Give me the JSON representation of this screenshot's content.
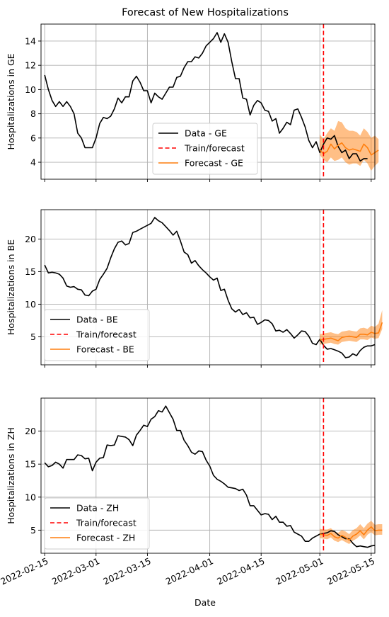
{
  "chart_data": {
    "type": "line",
    "title": "Forecast of New Hospitalizations",
    "xlabel": "Date",
    "x_start": "2022-02-15",
    "xlim": [
      "2022-02-14",
      "2022-05-16"
    ],
    "x_ticks": [
      "2022-02-15",
      "2022-03-01",
      "2022-03-15",
      "2022-04-01",
      "2022-04-15",
      "2022-05-01",
      "2022-05-15"
    ],
    "train_forecast_split": "2022-05-02",
    "grid": true,
    "colors": {
      "data": "#000000",
      "split": "#ff0000",
      "forecast": "#ff7f0e",
      "band": "#ff7f0e"
    },
    "panels": [
      {
        "region": "GE",
        "ylabel": "Hospitalizations in GE",
        "ylim": [
          2.6,
          15.4
        ],
        "yticks": [
          4,
          6,
          8,
          10,
          12,
          14
        ],
        "legend_position": "lower-center",
        "legend": [
          "Data - GE",
          "Train/forecast",
          "Forecast - GE"
        ],
        "data_values": [
          11.2,
          10.0,
          9.1,
          8.6,
          9.0,
          8.6,
          9.0,
          8.6,
          8.0,
          6.4,
          6.0,
          5.2,
          5.2,
          5.2,
          6.0,
          7.2,
          7.7,
          7.6,
          7.8,
          8.4,
          9.3,
          8.9,
          9.4,
          9.4,
          10.7,
          11.1,
          10.6,
          9.9,
          9.9,
          8.9,
          9.7,
          9.4,
          9.2,
          9.7,
          10.2,
          10.2,
          11.0,
          11.1,
          11.8,
          12.3,
          12.3,
          12.7,
          12.6,
          13.0,
          13.6,
          13.9,
          14.2,
          14.7,
          13.9,
          14.6,
          13.9,
          12.3,
          10.9,
          10.9,
          9.3,
          9.2,
          7.9,
          8.7,
          9.1,
          8.9,
          8.3,
          8.2,
          7.4,
          7.6,
          6.4,
          6.8,
          7.3,
          7.1,
          8.3,
          8.4,
          7.7,
          6.9,
          5.8,
          5.2,
          5.7,
          4.8,
          5.5,
          6.0,
          5.9,
          6.2,
          5.3,
          4.8,
          5.0,
          4.3,
          4.7,
          4.7,
          4.1,
          4.3,
          4.3
        ],
        "forecast_start": "2022-05-01",
        "forecast_values": [
          5.0,
          4.7,
          4.9,
          5.5,
          5.1,
          5.4,
          5.6,
          5.2,
          5.0,
          5.1,
          5.0,
          4.9,
          5.5,
          5.2,
          4.6,
          4.8,
          5.0
        ],
        "forecast_lower": [
          4.6,
          4.2,
          4.0,
          4.4,
          4.1,
          4.2,
          4.4,
          4.0,
          3.8,
          3.9,
          3.9,
          3.7,
          4.2,
          3.9,
          3.3,
          3.7,
          4.0
        ],
        "forecast_upper": [
          6.3,
          5.9,
          6.4,
          6.8,
          6.6,
          7.4,
          7.3,
          6.8,
          6.6,
          6.6,
          6.5,
          6.2,
          6.8,
          6.5,
          6.0,
          6.2,
          5.9
        ]
      },
      {
        "region": "BE",
        "ylabel": "Hospitalizations in BE",
        "ylim": [
          0.7,
          24.5
        ],
        "yticks": [
          5,
          10,
          15,
          20
        ],
        "legend_position": "lower-left",
        "legend": [
          "Data - BE",
          "Train/forecast",
          "Forecast - BE"
        ],
        "data_values": [
          16.0,
          14.8,
          14.9,
          14.8,
          14.6,
          14.0,
          12.8,
          12.6,
          12.7,
          12.3,
          12.2,
          11.4,
          11.3,
          12.0,
          12.3,
          13.8,
          14.6,
          15.5,
          17.1,
          18.5,
          19.5,
          19.7,
          19.1,
          19.3,
          21.0,
          21.2,
          21.5,
          21.8,
          22.1,
          22.4,
          23.3,
          22.8,
          22.5,
          21.9,
          21.3,
          20.6,
          21.2,
          19.7,
          18.0,
          17.6,
          16.3,
          16.7,
          15.9,
          15.3,
          14.8,
          14.2,
          13.7,
          14.0,
          12.1,
          12.3,
          10.6,
          9.3,
          8.8,
          9.2,
          8.4,
          8.7,
          7.9,
          8.0,
          6.9,
          7.2,
          7.6,
          7.5,
          7.0,
          5.9,
          6.0,
          5.7,
          6.1,
          5.5,
          4.8,
          5.3,
          5.9,
          5.8,
          5.1,
          4.0,
          3.8,
          4.6,
          3.7,
          3.1,
          3.2,
          3.0,
          2.8,
          2.5,
          1.8,
          1.9,
          2.4,
          2.1,
          2.9,
          3.4,
          3.6,
          3.6,
          3.8
        ],
        "forecast_start": "2022-05-01",
        "forecast_values": [
          4.5,
          4.6,
          4.7,
          4.8,
          4.6,
          4.4,
          4.9,
          5.0,
          5.1,
          5.0,
          4.9,
          5.4,
          5.4,
          5.3,
          5.7,
          5.5,
          5.6,
          7.2
        ],
        "forecast_lower": [
          3.8,
          3.9,
          4.0,
          4.1,
          3.9,
          3.8,
          4.2,
          4.3,
          4.4,
          4.3,
          4.2,
          4.6,
          4.6,
          4.5,
          4.9,
          4.7,
          4.8,
          6.2
        ],
        "forecast_upper": [
          5.4,
          5.5,
          5.6,
          5.7,
          5.5,
          5.4,
          5.8,
          5.9,
          6.0,
          5.9,
          5.8,
          6.3,
          6.4,
          6.2,
          6.7,
          6.5,
          7.0,
          9.1
        ]
      },
      {
        "region": "ZH",
        "ylabel": "Hospitalizations in ZH",
        "ylim": [
          1.5,
          25.0
        ],
        "yticks": [
          5,
          10,
          15,
          20
        ],
        "legend_position": "lower-left",
        "legend": [
          "Data - ZH",
          "Train/forecast",
          "Forecast - ZH"
        ],
        "data_values": [
          15.2,
          14.6,
          14.8,
          15.3,
          15.0,
          14.4,
          15.7,
          15.7,
          15.7,
          16.4,
          16.3,
          15.8,
          15.9,
          14.0,
          15.3,
          15.9,
          16.0,
          17.9,
          17.8,
          17.9,
          19.3,
          19.2,
          19.1,
          18.7,
          17.8,
          19.4,
          20.1,
          20.9,
          20.7,
          21.8,
          22.2,
          23.1,
          22.9,
          23.8,
          22.8,
          21.8,
          20.1,
          20.1,
          18.6,
          17.8,
          16.8,
          16.5,
          17.0,
          16.9,
          15.6,
          14.7,
          13.3,
          12.7,
          12.4,
          12.0,
          11.5,
          11.4,
          11.3,
          11.0,
          11.2,
          10.3,
          8.7,
          8.7,
          8.0,
          7.3,
          7.5,
          7.4,
          6.6,
          7.1,
          6.2,
          6.2,
          5.6,
          5.7,
          4.7,
          4.4,
          4.1,
          3.3,
          3.3,
          3.8,
          4.1,
          4.4,
          4.5,
          4.6,
          4.9,
          4.8,
          4.3,
          4.0,
          3.7,
          3.7,
          3.0,
          2.5,
          2.6,
          2.5,
          2.4,
          2.6,
          2.7
        ],
        "forecast_start": "2022-05-01",
        "forecast_values": [
          4.4,
          4.3,
          4.2,
          4.5,
          4.0,
          3.8,
          4.2,
          3.9,
          3.5,
          4.1,
          4.4,
          4.9,
          4.3,
          5.0,
          5.5,
          4.9,
          5.0,
          5.0
        ],
        "forecast_lower": [
          3.8,
          3.7,
          3.6,
          3.9,
          3.4,
          3.2,
          3.5,
          3.2,
          2.9,
          3.4,
          3.7,
          4.2,
          3.6,
          4.3,
          4.7,
          4.2,
          4.3,
          4.3
        ],
        "forecast_upper": [
          5.2,
          5.1,
          5.1,
          5.3,
          4.8,
          4.6,
          5.0,
          4.8,
          4.4,
          5.0,
          5.3,
          5.9,
          5.3,
          6.0,
          6.4,
          5.8,
          5.9,
          5.9
        ]
      }
    ]
  }
}
